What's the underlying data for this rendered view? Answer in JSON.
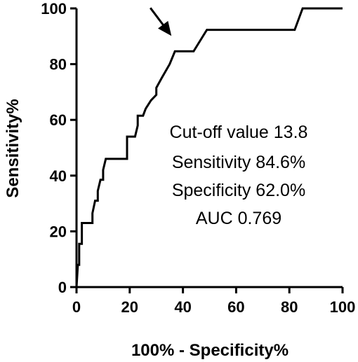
{
  "chart_data": {
    "type": "line",
    "title": "",
    "xlabel": "100% - Specificity%",
    "ylabel": "Sensitivity%",
    "xlim": [
      0,
      100
    ],
    "ylim": [
      0,
      100
    ],
    "xticks": [
      "0",
      "20",
      "40",
      "60",
      "80",
      "100"
    ],
    "yticks": [
      "0",
      "20",
      "40",
      "60",
      "80",
      "100"
    ],
    "grid": false,
    "legend": "none",
    "line_color": "#000000",
    "series": [
      {
        "x": [
          0,
          0.5,
          1,
          1,
          2,
          2,
          3,
          6,
          6,
          7,
          8,
          8,
          9,
          10,
          10,
          11,
          12,
          12,
          19,
          19,
          21,
          22,
          23,
          23,
          25,
          26,
          28,
          30,
          30,
          32,
          35,
          37,
          41,
          44,
          49,
          82,
          85,
          100
        ],
        "y": [
          0,
          8,
          8,
          15.5,
          15.5,
          23,
          23,
          23,
          26.5,
          31,
          31,
          34.5,
          38.5,
          38.5,
          42,
          46,
          46,
          46,
          46,
          54,
          54,
          54,
          58,
          61.5,
          61.5,
          64,
          67,
          69,
          71.5,
          75,
          80,
          84.6,
          84.6,
          84.6,
          92.3,
          92.3,
          100,
          100
        ]
      }
    ],
    "annotations": {
      "lines": [
        "Cut-off value 13.8",
        "Sensitivity 84.6%",
        "Specificity 62.0%",
        "AUC 0.769"
      ],
      "arrow_target": [
        37,
        84.6
      ]
    }
  }
}
